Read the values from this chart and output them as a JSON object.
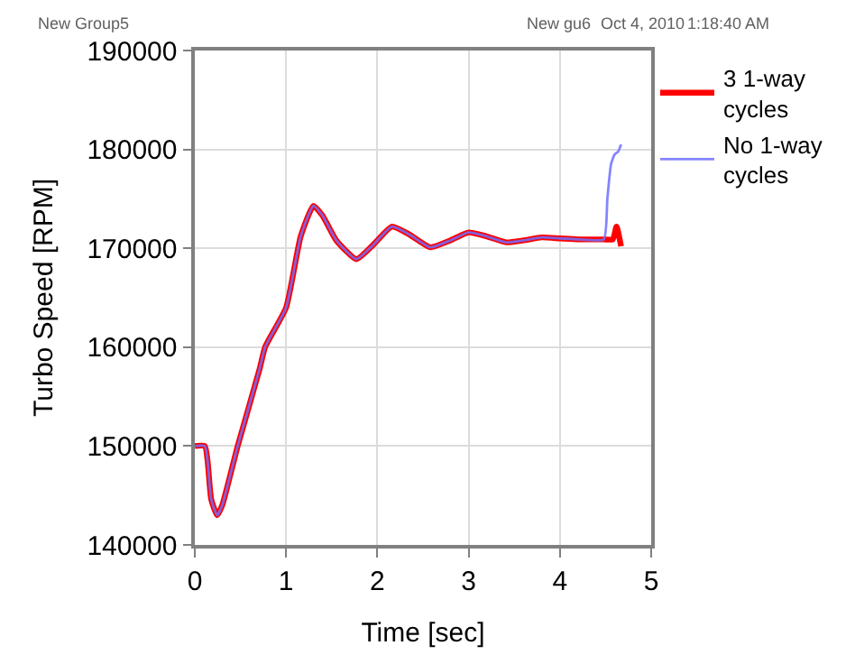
{
  "chart_data": {
    "type": "line",
    "xlabel": "Time [sec]",
    "ylabel": "Turbo Speed [RPM]",
    "annotations": [
      "New Group5",
      "New gu6",
      "Oct 4, 2010",
      "1:18:40 AM"
    ],
    "xlim": [
      0,
      5
    ],
    "xticks": [
      0,
      1,
      2,
      3,
      4,
      5
    ],
    "ylim": [
      140000,
      190000
    ],
    "yticks": [
      140000,
      150000,
      160000,
      170000,
      180000,
      190000
    ],
    "grid": true,
    "legend": "top right",
    "series": [
      {
        "name": "3 1-way cycles",
        "color": "#ff0000",
        "x": [
          0,
          0.11,
          0.14,
          0.18,
          0.245,
          0.3,
          0.47,
          0.71,
          0.77,
          1.0,
          1.16,
          1.3,
          1.4,
          1.55,
          1.77,
          1.95,
          2.16,
          2.35,
          2.58,
          2.8,
          3.0,
          3.2,
          3.41,
          3.6,
          3.8,
          4.0,
          4.2,
          4.48,
          4.58,
          4.62,
          4.67
        ],
        "values": [
          150000,
          150000,
          148500,
          144600,
          143000,
          144000,
          150000,
          157800,
          160000,
          164000,
          171200,
          174300,
          173300,
          170800,
          168900,
          170300,
          172200,
          171400,
          170100,
          170800,
          171600,
          171200,
          170600,
          170800,
          171100,
          171000,
          170900,
          170900,
          170900,
          172200,
          170200
        ]
      },
      {
        "name": "No 1-way cycles",
        "color": "#7070ff",
        "x": [
          0,
          0.11,
          0.14,
          0.18,
          0.245,
          0.3,
          0.47,
          0.71,
          0.77,
          1.0,
          1.16,
          1.3,
          1.4,
          1.55,
          1.77,
          1.95,
          2.16,
          2.35,
          2.58,
          2.8,
          3.0,
          3.2,
          3.41,
          3.6,
          3.8,
          4.0,
          4.2,
          4.48,
          4.52,
          4.56,
          4.6,
          4.64,
          4.67
        ],
        "values": [
          150000,
          150000,
          148500,
          144600,
          143000,
          144000,
          150000,
          157800,
          160000,
          164000,
          171200,
          174300,
          173300,
          170800,
          168900,
          170300,
          172200,
          171400,
          170100,
          170800,
          171600,
          171200,
          170600,
          170800,
          171100,
          171000,
          170900,
          170900,
          175000,
          178500,
          179500,
          179800,
          180500
        ]
      }
    ]
  }
}
